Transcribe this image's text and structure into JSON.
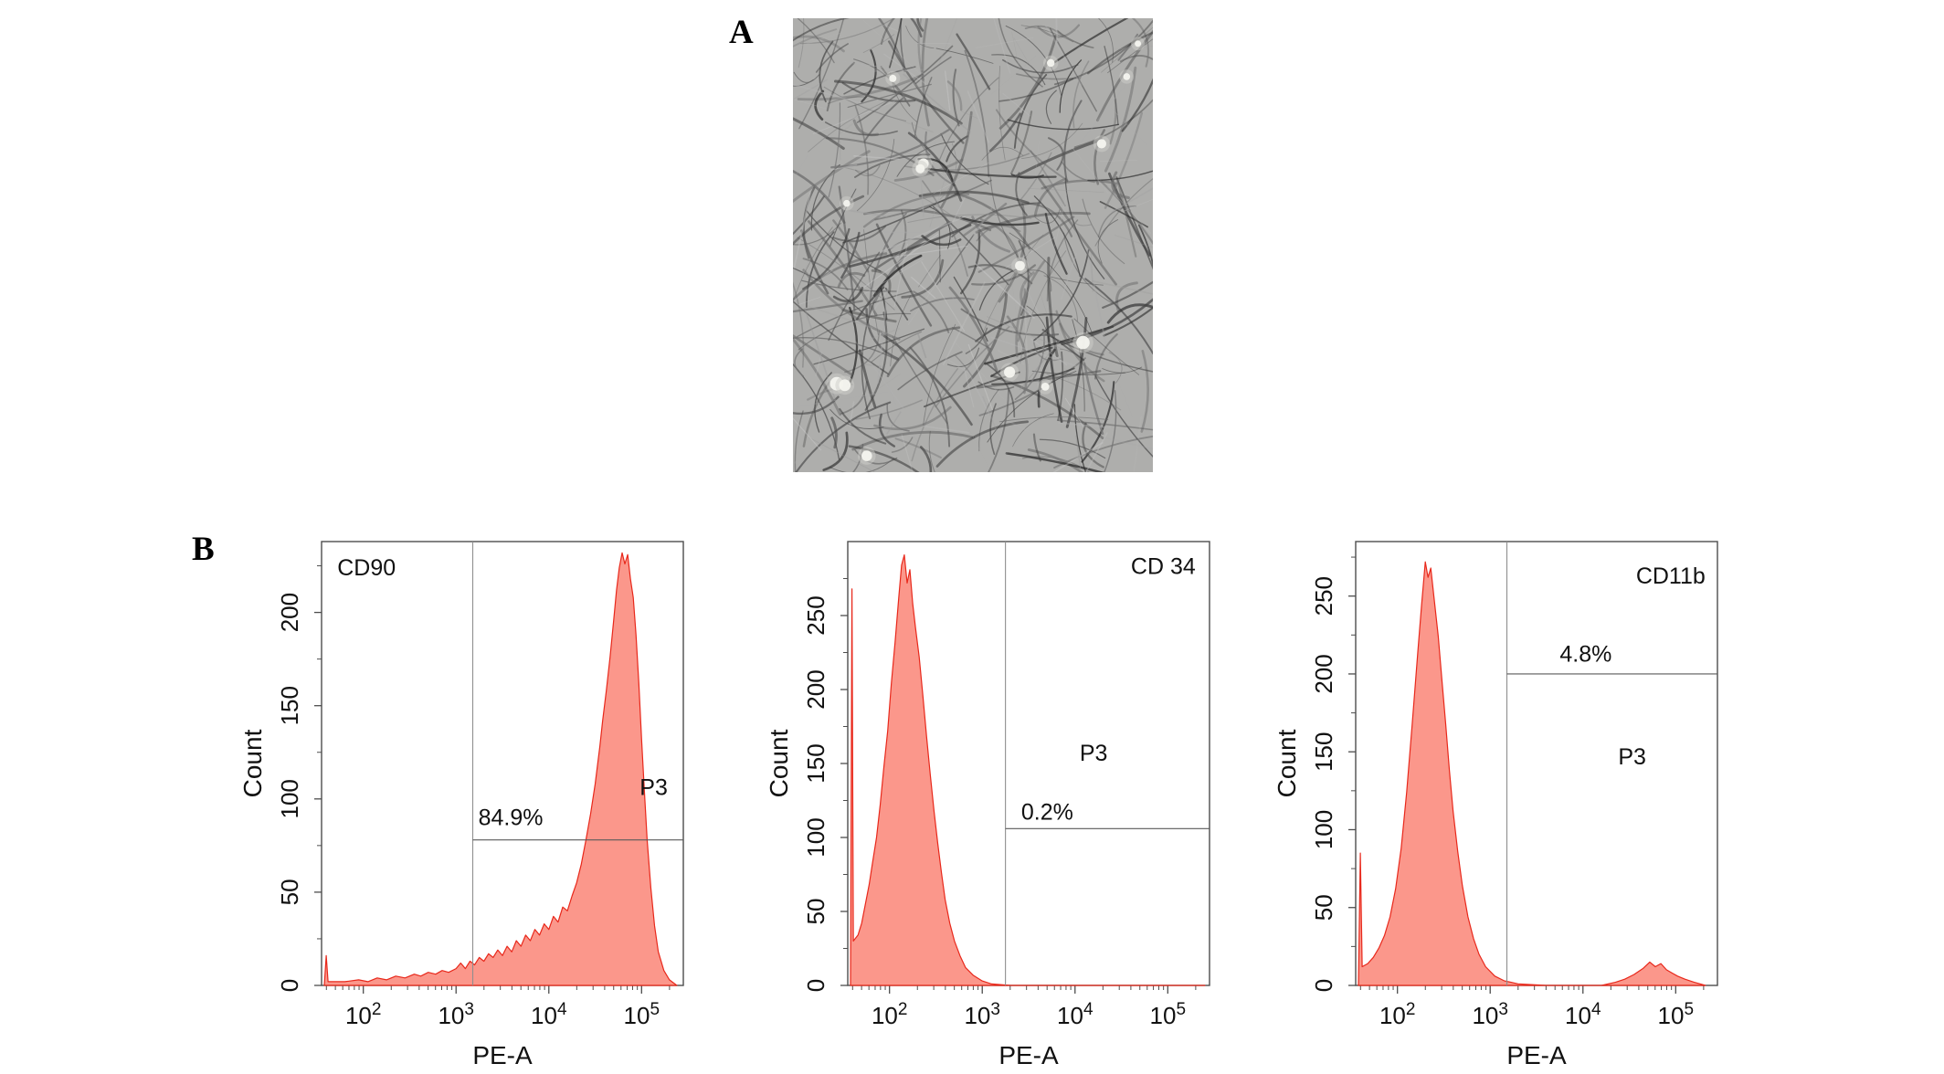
{
  "figure": {
    "panels": [
      {
        "label": "A"
      },
      {
        "label": "B"
      }
    ]
  },
  "micrograph": {
    "alt": "phase-contrast micrograph of spindle-shaped adherent cultured cells"
  },
  "colors": {
    "histogram_fill": "#fb8e81",
    "histogram_stroke": "#e8281b",
    "axis": "#4d4d4d",
    "gate_line": "#8f8f8f"
  },
  "chart_data": [
    {
      "type": "area",
      "marker": "CD90",
      "xlabel": "PE-A",
      "ylabel": "Count",
      "x_scale": "log",
      "x_log_range": [
        1.55,
        5.45
      ],
      "x_tick_exponents": [
        2,
        3,
        4,
        5
      ],
      "x_tick_labels": [
        "10^2",
        "10^3",
        "10^4",
        "10^5"
      ],
      "ylim": [
        0,
        238
      ],
      "y_ticks": [
        0,
        50,
        100,
        150,
        200
      ],
      "gate": {
        "name": "P3",
        "percent": "84.9%",
        "x_log": 3.18,
        "y_count": 78
      },
      "labels": [
        {
          "text": "CD90",
          "x": 1.72,
          "y": 220,
          "anchor": "start"
        },
        {
          "text": "84.9%",
          "x": 3.24,
          "y": 86,
          "anchor": "start"
        },
        {
          "text": "P3",
          "x": 4.98,
          "y": 102,
          "anchor": "start"
        }
      ],
      "points": [
        [
          1.58,
          0
        ],
        [
          1.6,
          16
        ],
        [
          1.62,
          2
        ],
        [
          1.8,
          2
        ],
        [
          1.95,
          3
        ],
        [
          2.05,
          2
        ],
        [
          2.15,
          4
        ],
        [
          2.25,
          3
        ],
        [
          2.35,
          5
        ],
        [
          2.45,
          4
        ],
        [
          2.55,
          6
        ],
        [
          2.62,
          5
        ],
        [
          2.7,
          7
        ],
        [
          2.78,
          6
        ],
        [
          2.85,
          8
        ],
        [
          2.92,
          7
        ],
        [
          3.0,
          9
        ],
        [
          3.05,
          12
        ],
        [
          3.1,
          9
        ],
        [
          3.15,
          13
        ],
        [
          3.2,
          11
        ],
        [
          3.25,
          15
        ],
        [
          3.3,
          13
        ],
        [
          3.35,
          17
        ],
        [
          3.4,
          15
        ],
        [
          3.45,
          19
        ],
        [
          3.5,
          16
        ],
        [
          3.55,
          21
        ],
        [
          3.6,
          18
        ],
        [
          3.65,
          24
        ],
        [
          3.7,
          21
        ],
        [
          3.75,
          27
        ],
        [
          3.8,
          24
        ],
        [
          3.85,
          30
        ],
        [
          3.9,
          27
        ],
        [
          3.95,
          33
        ],
        [
          4.0,
          30
        ],
        [
          4.05,
          37
        ],
        [
          4.1,
          34
        ],
        [
          4.15,
          42
        ],
        [
          4.2,
          40
        ],
        [
          4.25,
          48
        ],
        [
          4.3,
          55
        ],
        [
          4.35,
          65
        ],
        [
          4.4,
          78
        ],
        [
          4.45,
          92
        ],
        [
          4.5,
          108
        ],
        [
          4.55,
          128
        ],
        [
          4.58,
          142
        ],
        [
          4.62,
          158
        ],
        [
          4.66,
          176
        ],
        [
          4.7,
          196
        ],
        [
          4.73,
          212
        ],
        [
          4.76,
          224
        ],
        [
          4.79,
          232
        ],
        [
          4.82,
          226
        ],
        [
          4.85,
          231
        ],
        [
          4.88,
          218
        ],
        [
          4.91,
          208
        ],
        [
          4.94,
          188
        ],
        [
          4.97,
          162
        ],
        [
          5.0,
          132
        ],
        [
          5.03,
          104
        ],
        [
          5.06,
          78
        ],
        [
          5.1,
          52
        ],
        [
          5.14,
          32
        ],
        [
          5.18,
          18
        ],
        [
          5.24,
          8
        ],
        [
          5.3,
          3
        ],
        [
          5.38,
          0
        ]
      ]
    },
    {
      "type": "area",
      "marker": "CD 34",
      "xlabel": "PE-A",
      "ylabel": "Count",
      "x_scale": "log",
      "x_log_range": [
        1.55,
        5.45
      ],
      "x_tick_exponents": [
        2,
        3,
        4,
        5
      ],
      "x_tick_labels": [
        "10^2",
        "10^3",
        "10^4",
        "10^5"
      ],
      "ylim": [
        0,
        300
      ],
      "y_ticks": [
        0,
        50,
        100,
        150,
        200,
        250
      ],
      "gate": {
        "name": "P3",
        "percent": "0.2%",
        "x_log": 3.25,
        "y_count": 106
      },
      "labels": [
        {
          "text": "CD 34",
          "x": 5.3,
          "y": 278,
          "anchor": "end"
        },
        {
          "text": "0.2%",
          "x": 3.42,
          "y": 112,
          "anchor": "start"
        },
        {
          "text": "P3",
          "x": 4.05,
          "y": 152,
          "anchor": "start"
        }
      ],
      "points": [
        [
          1.58,
          0
        ],
        [
          1.595,
          268
        ],
        [
          1.61,
          30
        ],
        [
          1.66,
          34
        ],
        [
          1.7,
          42
        ],
        [
          1.74,
          55
        ],
        [
          1.78,
          68
        ],
        [
          1.82,
          84
        ],
        [
          1.86,
          100
        ],
        [
          1.9,
          122
        ],
        [
          1.94,
          148
        ],
        [
          1.98,
          172
        ],
        [
          2.02,
          204
        ],
        [
          2.06,
          232
        ],
        [
          2.1,
          262
        ],
        [
          2.13,
          284
        ],
        [
          2.16,
          291
        ],
        [
          2.19,
          272
        ],
        [
          2.22,
          281
        ],
        [
          2.25,
          258
        ],
        [
          2.28,
          242
        ],
        [
          2.32,
          222
        ],
        [
          2.36,
          196
        ],
        [
          2.4,
          168
        ],
        [
          2.44,
          142
        ],
        [
          2.48,
          118
        ],
        [
          2.52,
          96
        ],
        [
          2.56,
          76
        ],
        [
          2.6,
          58
        ],
        [
          2.65,
          42
        ],
        [
          2.7,
          30
        ],
        [
          2.76,
          20
        ],
        [
          2.82,
          12
        ],
        [
          2.9,
          7
        ],
        [
          3.0,
          3
        ],
        [
          3.1,
          1
        ],
        [
          3.3,
          0
        ],
        [
          5.4,
          0
        ]
      ]
    },
    {
      "type": "area",
      "marker": "CD11b",
      "xlabel": "PE-A",
      "ylabel": "Count",
      "x_scale": "log",
      "x_log_range": [
        1.55,
        5.45
      ],
      "x_tick_exponents": [
        2,
        3,
        4,
        5
      ],
      "x_tick_labels": [
        "10^2",
        "10^3",
        "10^4",
        "10^5"
      ],
      "ylim": [
        0,
        285
      ],
      "y_ticks": [
        0,
        50,
        100,
        150,
        200,
        250
      ],
      "gate": {
        "name": "P3",
        "percent": "4.8%",
        "x_log": 3.18,
        "y_count": 200
      },
      "labels": [
        {
          "text": "CD11b",
          "x": 5.32,
          "y": 258,
          "anchor": "end"
        },
        {
          "text": "4.8%",
          "x": 3.75,
          "y": 208,
          "anchor": "start"
        },
        {
          "text": "P3",
          "x": 4.38,
          "y": 142,
          "anchor": "start"
        }
      ],
      "points": [
        [
          1.58,
          0
        ],
        [
          1.6,
          85
        ],
        [
          1.62,
          12
        ],
        [
          1.68,
          14
        ],
        [
          1.74,
          18
        ],
        [
          1.8,
          24
        ],
        [
          1.86,
          32
        ],
        [
          1.92,
          44
        ],
        [
          1.98,
          62
        ],
        [
          2.04,
          88
        ],
        [
          2.1,
          124
        ],
        [
          2.16,
          168
        ],
        [
          2.22,
          214
        ],
        [
          2.26,
          244
        ],
        [
          2.3,
          272
        ],
        [
          2.33,
          262
        ],
        [
          2.36,
          268
        ],
        [
          2.4,
          246
        ],
        [
          2.44,
          224
        ],
        [
          2.48,
          196
        ],
        [
          2.52,
          168
        ],
        [
          2.56,
          138
        ],
        [
          2.6,
          112
        ],
        [
          2.65,
          86
        ],
        [
          2.7,
          64
        ],
        [
          2.76,
          44
        ],
        [
          2.82,
          30
        ],
        [
          2.88,
          20
        ],
        [
          2.95,
          12
        ],
        [
          3.05,
          6
        ],
        [
          3.15,
          3
        ],
        [
          3.3,
          1
        ],
        [
          3.6,
          0
        ],
        [
          4.2,
          0
        ],
        [
          4.35,
          2
        ],
        [
          4.45,
          4
        ],
        [
          4.55,
          7
        ],
        [
          4.65,
          11
        ],
        [
          4.72,
          15
        ],
        [
          4.78,
          12
        ],
        [
          4.84,
          14
        ],
        [
          4.9,
          10
        ],
        [
          4.96,
          8
        ],
        [
          5.02,
          6
        ],
        [
          5.1,
          4
        ],
        [
          5.2,
          2
        ],
        [
          5.32,
          0
        ]
      ]
    }
  ]
}
